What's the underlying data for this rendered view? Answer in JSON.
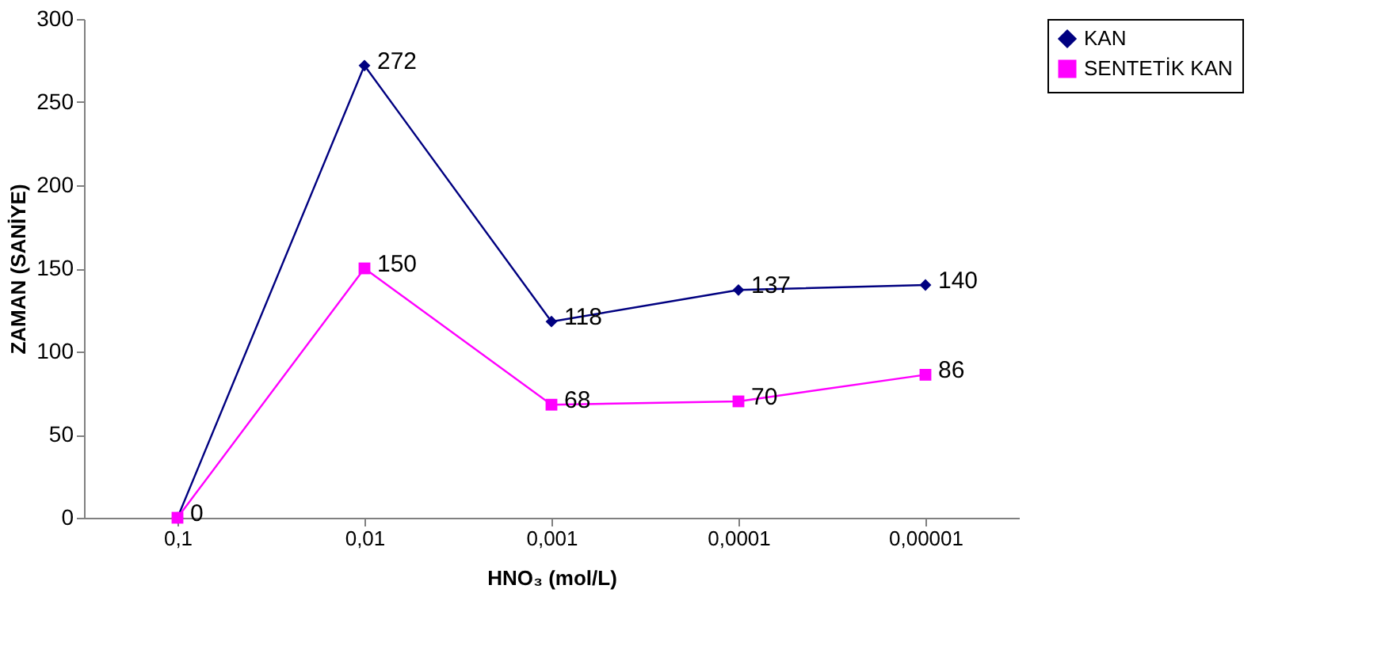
{
  "chart_data": {
    "type": "line",
    "xlabel": "HNO₃ (mol/L)",
    "ylabel": "ZAMAN (SANİYE)",
    "categories": [
      "0,1",
      "0,01",
      "0,001",
      "0,0001",
      "0,00001"
    ],
    "series": [
      {
        "name": "KAN",
        "color": "#000080",
        "marker": "diamond",
        "values": [
          0,
          272,
          118,
          137,
          140
        ],
        "value_labels": [
          "0",
          "272",
          "118",
          "137",
          "140"
        ]
      },
      {
        "name": "SENTETİK KAN",
        "color": "#ff00ff",
        "marker": "square",
        "values": [
          0,
          150,
          68,
          70,
          86
        ],
        "value_labels": [
          null,
          "150",
          "68",
          "70",
          "86"
        ]
      }
    ],
    "ylim": [
      0,
      300
    ],
    "yticks": [
      0,
      50,
      100,
      150,
      200,
      250,
      300
    ],
    "grid": false,
    "legend": "right",
    "line_style": "solid"
  }
}
